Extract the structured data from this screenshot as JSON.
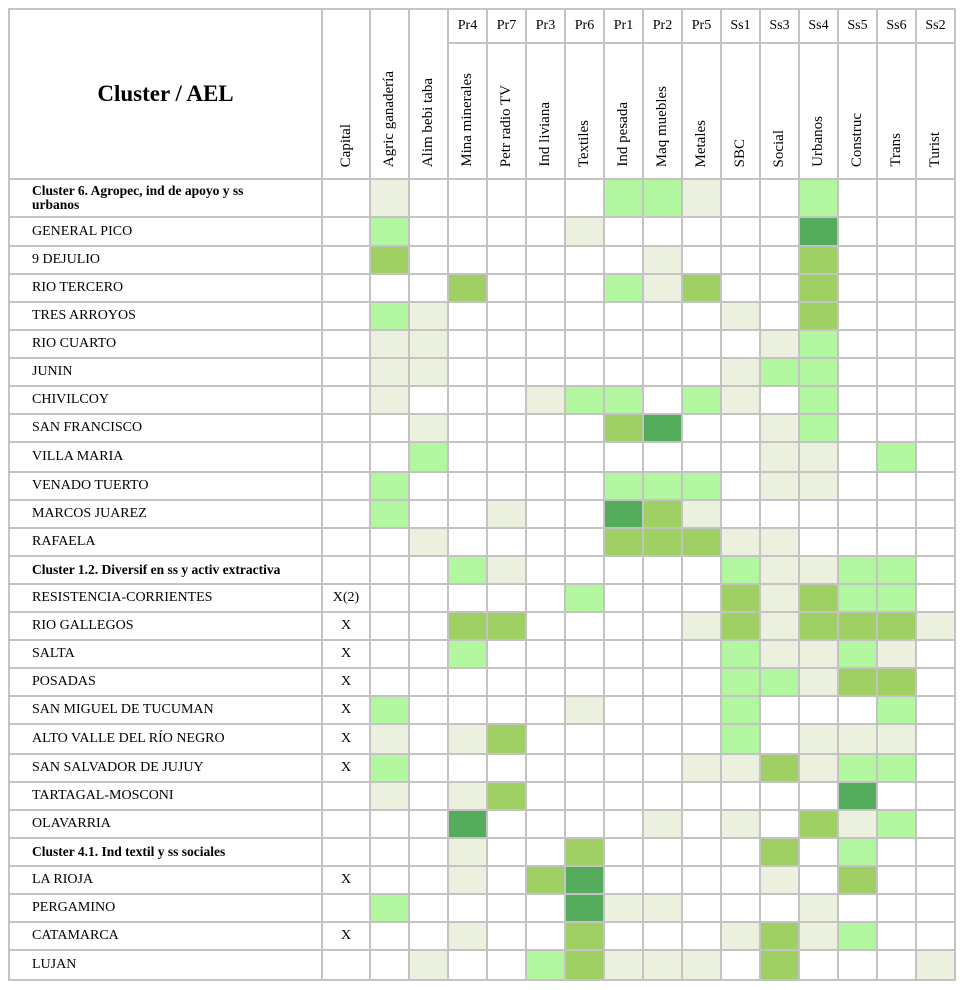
{
  "header": {
    "corner_label": "Cluster / AEL",
    "capital_label": "Capital",
    "columns": [
      {
        "code": "",
        "label": "Agric ganadería"
      },
      {
        "code": "",
        "label": "Alim bebi taba"
      },
      {
        "code": "Pr4",
        "label": "Mina minerales"
      },
      {
        "code": "Pr7",
        "label": "Petr radio TV"
      },
      {
        "code": "Pr3",
        "label": "Ind liviana"
      },
      {
        "code": "Pr6",
        "label": "Textiles"
      },
      {
        "code": "Pr1",
        "label": "Ind pesada"
      },
      {
        "code": "Pr2",
        "label": "Maq muebles"
      },
      {
        "code": "Pr5",
        "label": "Metales"
      },
      {
        "code": "Ss1",
        "label": "SBC"
      },
      {
        "code": "Ss3",
        "label": "Social"
      },
      {
        "code": "Ss4",
        "label": "Urbanos"
      },
      {
        "code": "Ss5",
        "label": "Construc"
      },
      {
        "code": "Ss6",
        "label": "Trans"
      },
      {
        "code": "Ss2",
        "label": "Turist"
      }
    ]
  },
  "shade_colors": {
    "1": "#ebf0df",
    "2": "#b3f6a0",
    "3": "#a0d063",
    "4": "#55ac5c"
  },
  "rows": [
    {
      "label": "Cluster 6. Agropec, ind de apoyo y ss urbanos",
      "capital": "",
      "cluster": true,
      "h": 38,
      "levels": [
        1,
        0,
        0,
        0,
        0,
        0,
        2,
        2,
        1,
        0,
        0,
        2,
        0,
        0,
        0
      ]
    },
    {
      "label": "GENERAL PICO",
      "capital": "",
      "cluster": false,
      "h": 29,
      "levels": [
        2,
        0,
        0,
        0,
        0,
        1,
        0,
        0,
        0,
        0,
        0,
        4,
        0,
        0,
        0
      ]
    },
    {
      "label": "9 DEJULIO",
      "capital": "",
      "cluster": false,
      "h": 28,
      "levels": [
        3,
        0,
        0,
        0,
        0,
        0,
        0,
        1,
        0,
        0,
        0,
        3,
        0,
        0,
        0
      ]
    },
    {
      "label": "RIO TERCERO",
      "capital": "",
      "cluster": false,
      "h": 28,
      "levels": [
        0,
        0,
        3,
        0,
        0,
        0,
        2,
        1,
        3,
        0,
        0,
        3,
        0,
        0,
        0
      ]
    },
    {
      "label": "TRES ARROYOS",
      "capital": "",
      "cluster": false,
      "h": 28,
      "levels": [
        2,
        1,
        0,
        0,
        0,
        0,
        0,
        0,
        0,
        1,
        0,
        3,
        0,
        0,
        0
      ]
    },
    {
      "label": "RIO CUARTO",
      "capital": "",
      "cluster": false,
      "h": 28,
      "levels": [
        1,
        1,
        0,
        0,
        0,
        0,
        0,
        0,
        0,
        0,
        1,
        2,
        0,
        0,
        0
      ]
    },
    {
      "label": "JUNIN",
      "capital": "",
      "cluster": false,
      "h": 28,
      "levels": [
        1,
        1,
        0,
        0,
        0,
        0,
        0,
        0,
        0,
        1,
        2,
        2,
        0,
        0,
        0
      ]
    },
    {
      "label": "CHIVILCOY",
      "capital": "",
      "cluster": false,
      "h": 28,
      "levels": [
        1,
        0,
        0,
        0,
        1,
        2,
        2,
        0,
        2,
        1,
        0,
        2,
        0,
        0,
        0
      ]
    },
    {
      "label": "SAN FRANCISCO",
      "capital": "",
      "cluster": false,
      "h": 28,
      "levels": [
        0,
        1,
        0,
        0,
        0,
        0,
        3,
        4,
        0,
        0,
        1,
        2,
        0,
        0,
        0
      ]
    },
    {
      "label": "VILLA MARIA",
      "capital": "",
      "cluster": false,
      "h": 30,
      "levels": [
        0,
        2,
        0,
        0,
        0,
        0,
        0,
        0,
        0,
        0,
        1,
        1,
        0,
        2,
        0
      ]
    },
    {
      "label": "VENADO TUERTO",
      "capital": "",
      "cluster": false,
      "h": 28,
      "levels": [
        2,
        0,
        0,
        0,
        0,
        0,
        2,
        2,
        2,
        0,
        1,
        1,
        0,
        0,
        0
      ]
    },
    {
      "label": "MARCOS JUAREZ",
      "capital": "",
      "cluster": false,
      "h": 28,
      "levels": [
        2,
        0,
        0,
        1,
        0,
        0,
        4,
        3,
        1,
        0,
        0,
        0,
        0,
        0,
        0
      ]
    },
    {
      "label": "RAFAELA",
      "capital": "",
      "cluster": false,
      "h": 28,
      "levels": [
        0,
        1,
        0,
        0,
        0,
        0,
        3,
        3,
        3,
        1,
        1,
        0,
        0,
        0,
        0
      ]
    },
    {
      "label": "Cluster 1.2. Diversif en ss y activ extractiva",
      "capital": "",
      "cluster": true,
      "h": 28,
      "levels": [
        0,
        0,
        2,
        1,
        0,
        0,
        0,
        0,
        0,
        2,
        1,
        1,
        2,
        2,
        0
      ]
    },
    {
      "label": "RESISTENCIA-CORRIENTES",
      "capital": "X(2)",
      "cluster": false,
      "h": 28,
      "levels": [
        0,
        0,
        0,
        0,
        0,
        2,
        0,
        0,
        0,
        3,
        1,
        3,
        2,
        2,
        0
      ]
    },
    {
      "label": "RIO GALLEGOS",
      "capital": "X",
      "cluster": false,
      "h": 28,
      "levels": [
        0,
        0,
        3,
        3,
        0,
        0,
        0,
        0,
        1,
        3,
        1,
        3,
        3,
        3,
        1
      ]
    },
    {
      "label": "SALTA",
      "capital": "X",
      "cluster": false,
      "h": 28,
      "levels": [
        0,
        0,
        2,
        0,
        0,
        0,
        0,
        0,
        0,
        2,
        1,
        1,
        2,
        1,
        0
      ]
    },
    {
      "label": "POSADAS",
      "capital": "X",
      "cluster": false,
      "h": 28,
      "levels": [
        0,
        0,
        0,
        0,
        0,
        0,
        0,
        0,
        0,
        2,
        2,
        1,
        3,
        3,
        0
      ]
    },
    {
      "label": "SAN MIGUEL DE TUCUMAN",
      "capital": "X",
      "cluster": false,
      "h": 28,
      "levels": [
        2,
        0,
        0,
        0,
        0,
        1,
        0,
        0,
        0,
        2,
        0,
        0,
        0,
        2,
        0
      ]
    },
    {
      "label": "ALTO VALLE DEL RÍO NEGRO",
      "capital": "X",
      "cluster": false,
      "h": 30,
      "levels": [
        1,
        0,
        1,
        3,
        0,
        0,
        0,
        0,
        0,
        2,
        0,
        1,
        1,
        1,
        0
      ]
    },
    {
      "label": "SAN SALVADOR DE JUJUY",
      "capital": "X",
      "cluster": false,
      "h": 28,
      "levels": [
        2,
        0,
        0,
        0,
        0,
        0,
        0,
        0,
        1,
        1,
        3,
        1,
        2,
        2,
        0
      ]
    },
    {
      "label": "TARTAGAL-MOSCONI",
      "capital": "",
      "cluster": false,
      "h": 28,
      "levels": [
        1,
        0,
        1,
        3,
        0,
        0,
        0,
        0,
        0,
        0,
        0,
        0,
        4,
        0,
        0
      ]
    },
    {
      "label": "OLAVARRIA",
      "capital": "",
      "cluster": false,
      "h": 28,
      "levels": [
        0,
        0,
        4,
        0,
        0,
        0,
        0,
        1,
        0,
        1,
        0,
        3,
        1,
        2,
        0
      ]
    },
    {
      "label": "Cluster 4.1. Ind textil y ss sociales",
      "capital": "",
      "cluster": true,
      "h": 28,
      "levels": [
        0,
        0,
        1,
        0,
        0,
        3,
        0,
        0,
        0,
        0,
        3,
        0,
        2,
        0,
        0
      ]
    },
    {
      "label": "LA RIOJA",
      "capital": "X",
      "cluster": false,
      "h": 28,
      "levels": [
        0,
        0,
        1,
        0,
        3,
        4,
        0,
        0,
        0,
        0,
        1,
        0,
        3,
        0,
        0
      ]
    },
    {
      "label": "PERGAMINO",
      "capital": "",
      "cluster": false,
      "h": 28,
      "levels": [
        2,
        0,
        0,
        0,
        0,
        4,
        1,
        1,
        0,
        0,
        0,
        1,
        0,
        0,
        0
      ]
    },
    {
      "label": "CATAMARCA",
      "capital": "X",
      "cluster": false,
      "h": 28,
      "levels": [
        0,
        0,
        1,
        0,
        0,
        3,
        0,
        0,
        0,
        1,
        3,
        1,
        2,
        0,
        0
      ]
    },
    {
      "label": "LUJAN",
      "capital": "",
      "cluster": false,
      "h": 30,
      "levels": [
        0,
        1,
        0,
        0,
        2,
        3,
        1,
        1,
        1,
        0,
        3,
        0,
        0,
        0,
        1
      ]
    }
  ]
}
